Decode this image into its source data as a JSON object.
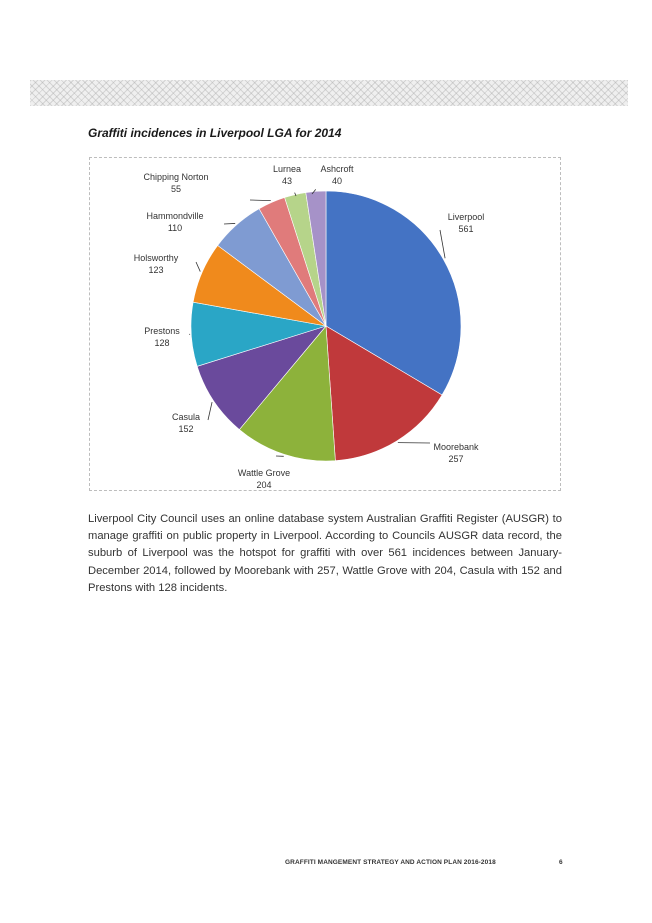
{
  "document": {
    "chart_title": "Graffiti incidences in Liverpool LGA for 2014",
    "body_text": "Liverpool City Council uses an online database system Australian Graffiti Register (AUSGR) to manage graffiti on public property in Liverpool. According to Councils AUSGR data record, the suburb of Liverpool was the hotspot for graffiti with over 561 incidences between January-December 2014, followed by Moorebank with 257, Wattle Grove with 204, Casula with 152 and Prestons with 128 incidents.",
    "footer": "GRAFFITI MANGEMENT STRATEGY AND ACTION PLAN 2016-2018",
    "page_number": "6"
  },
  "chart_data": {
    "type": "pie",
    "title": "Graffiti incidences in Liverpool LGA for 2014",
    "slices": [
      {
        "label": "Liverpool",
        "value": 561,
        "color": "#4473c4"
      },
      {
        "label": "Moorebank",
        "value": 257,
        "color": "#c0393b"
      },
      {
        "label": "Wattle Grove",
        "value": 204,
        "color": "#8db23b"
      },
      {
        "label": "Casula",
        "value": 152,
        "color": "#6a4a9c"
      },
      {
        "label": "Prestons",
        "value": 128,
        "color": "#2aa6c6"
      },
      {
        "label": "Holsworthy",
        "value": 123,
        "color": "#f08a1c"
      },
      {
        "label": "Hammondville",
        "value": 110,
        "color": "#7f9bd2"
      },
      {
        "label": "Chipping Norton",
        "value": 55,
        "color": "#e07b7b"
      },
      {
        "label": "Lurnea",
        "value": 43,
        "color": "#b6d48a"
      },
      {
        "label": "Ashcroft",
        "value": 40,
        "color": "#a692c8"
      }
    ],
    "labels_shown": "label and value outside slices with leader lines",
    "legend": "none"
  }
}
